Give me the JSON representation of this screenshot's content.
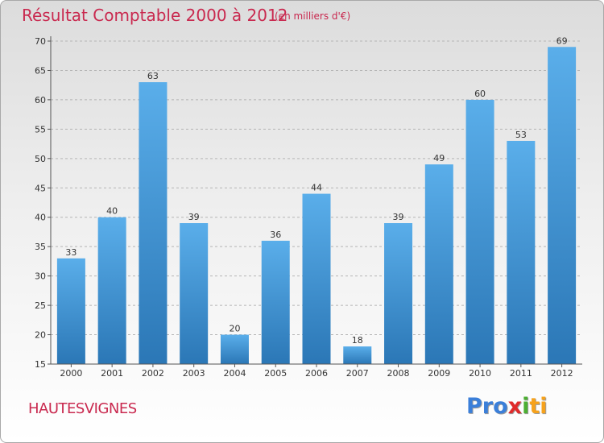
{
  "header": {
    "title": "Résultat Comptable 2000 à 2012",
    "subtitle": "(en milliers d'€)"
  },
  "footer": {
    "place": "HAUTESVIGNES",
    "logo_parts": [
      "Pro",
      "x",
      "i",
      "ti"
    ]
  },
  "colors": {
    "title": "#c9294f",
    "bar_light": "#5aaeea",
    "bar_dark": "#2b77b6"
  },
  "chart_data": {
    "type": "bar",
    "title": "Résultat Comptable 2000 à 2012",
    "subtitle": "(en milliers d'€)",
    "categories": [
      "2000",
      "2001",
      "2002",
      "2003",
      "2004",
      "2005",
      "2006",
      "2007",
      "2008",
      "2009",
      "2010",
      "2011",
      "2012"
    ],
    "values": [
      33,
      40,
      63,
      39,
      20,
      36,
      44,
      18,
      39,
      49,
      60,
      53,
      69
    ],
    "ylim": [
      15,
      70
    ],
    "yticks": [
      15,
      20,
      25,
      30,
      35,
      40,
      45,
      50,
      55,
      60,
      65,
      70
    ],
    "xlabel": "",
    "ylabel": "",
    "grid": "horizontal-dashed"
  }
}
